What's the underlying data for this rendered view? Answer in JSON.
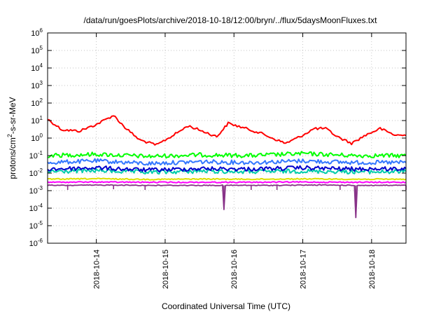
{
  "chart_data": {
    "type": "line",
    "title": "/data/run/goesPlots/archive/2018-10-18/12:00/bryn/../flux/5daysMoonFluxes.txt",
    "xlabel": "Coordinated Universal Time (UTC)",
    "ylabel_parts": [
      "protons/cm",
      "2",
      "-s-sr-MeV"
    ],
    "y_scale": "log",
    "ylim": [
      1e-06,
      1000000.0
    ],
    "xlim": [
      "2018-10-13T07:00",
      "2018-10-18T12:00"
    ],
    "grid": true,
    "x_ticks": [
      "2018-10-14",
      "2018-10-15",
      "2018-10-16",
      "2018-10-17",
      "2018-10-18"
    ],
    "y_ticks": [
      {
        "base": "10",
        "exp": "-6"
      },
      {
        "base": "10",
        "exp": "-5"
      },
      {
        "base": "10",
        "exp": "-4"
      },
      {
        "base": "10",
        "exp": "-3"
      },
      {
        "base": "10",
        "exp": "-2"
      },
      {
        "base": "10",
        "exp": "-1"
      },
      {
        "base": "10",
        "exp": "0"
      },
      {
        "base": "10",
        "exp": "1"
      },
      {
        "base": "10",
        "exp": "2"
      },
      {
        "base": "10",
        "exp": "3"
      },
      {
        "base": "10",
        "exp": "4"
      },
      {
        "base": "10",
        "exp": "5"
      },
      {
        "base": "10",
        "exp": "6"
      }
    ],
    "series": [
      {
        "color": "#ff0000",
        "x": [
          "2018-10-13T07:00",
          "2018-10-13T12:00",
          "2018-10-13T18:00",
          "2018-10-14T00:00",
          "2018-10-14T06:00",
          "2018-10-14T10:00",
          "2018-10-14T15:00",
          "2018-10-14T21:00",
          "2018-10-15T03:00",
          "2018-10-15T08:00",
          "2018-10-15T13:00",
          "2018-10-15T18:00",
          "2018-10-15T22:00",
          "2018-10-16T03:00",
          "2018-10-16T09:00",
          "2018-10-16T14:00",
          "2018-10-16T18:00",
          "2018-10-16T23:00",
          "2018-10-17T04:00",
          "2018-10-17T08:00",
          "2018-10-17T12:00",
          "2018-10-17T17:00",
          "2018-10-17T22:00",
          "2018-10-18T03:00",
          "2018-10-18T08:00",
          "2018-10-18T12:00"
        ],
        "values": [
          12,
          3,
          2.5,
          6,
          20,
          4,
          0.8,
          0.4,
          1.5,
          5,
          2.5,
          1.2,
          7,
          4,
          2,
          0.9,
          0.5,
          1.2,
          3.5,
          3.5,
          1.2,
          0.5,
          1.5,
          3.5,
          1.5,
          1.4
        ]
      },
      {
        "color": "#00ff00",
        "x": [
          "2018-10-13T07:00",
          "2018-10-14T00:00",
          "2018-10-14T18:00",
          "2018-10-15T12:00",
          "2018-10-16T06:00",
          "2018-10-17T00:00",
          "2018-10-17T18:00",
          "2018-10-18T12:00"
        ],
        "values": [
          0.1,
          0.12,
          0.09,
          0.11,
          0.1,
          0.13,
          0.1,
          0.1
        ]
      },
      {
        "color": "#3377ff",
        "x": [
          "2018-10-13T07:00",
          "2018-10-14T00:00",
          "2018-10-14T18:00",
          "2018-10-15T12:00",
          "2018-10-16T06:00",
          "2018-10-17T00:00",
          "2018-10-17T18:00",
          "2018-10-18T12:00"
        ],
        "values": [
          0.04,
          0.05,
          0.035,
          0.045,
          0.04,
          0.05,
          0.04,
          0.04
        ]
      },
      {
        "color": "#00ccaa",
        "x": [
          "2018-10-13T07:00",
          "2018-10-14T00:00",
          "2018-10-14T18:00",
          "2018-10-15T12:00",
          "2018-10-16T06:00",
          "2018-10-17T00:00",
          "2018-10-17T18:00",
          "2018-10-18T12:00"
        ],
        "values": [
          0.012,
          0.014,
          0.011,
          0.013,
          0.012,
          0.013,
          0.012,
          0.012
        ]
      },
      {
        "color": "#0000cc",
        "x": [
          "2018-10-13T07:00",
          "2018-10-14T00:00",
          "2018-10-14T18:00",
          "2018-10-15T12:00",
          "2018-10-16T06:00",
          "2018-10-17T00:00",
          "2018-10-17T18:00",
          "2018-10-18T12:00"
        ],
        "values": [
          0.017,
          0.02,
          0.015,
          0.018,
          0.017,
          0.02,
          0.017,
          0.018
        ]
      },
      {
        "color": "#dddd00",
        "x": [
          "2018-10-13T07:00",
          "2018-10-14T00:00",
          "2018-10-14T18:00",
          "2018-10-15T12:00",
          "2018-10-16T06:00",
          "2018-10-17T00:00",
          "2018-10-17T18:00",
          "2018-10-18T12:00"
        ],
        "values": [
          0.0045,
          0.0048,
          0.0044,
          0.0046,
          0.0045,
          0.0047,
          0.0045,
          0.0045
        ]
      },
      {
        "color": "#ff00ff",
        "x": [
          "2018-10-13T07:00",
          "2018-10-14T00:00",
          "2018-10-14T18:00",
          "2018-10-15T12:00",
          "2018-10-16T06:00",
          "2018-10-17T00:00",
          "2018-10-17T18:00",
          "2018-10-18T12:00"
        ],
        "values": [
          0.003,
          0.0031,
          0.003,
          0.003,
          0.003,
          0.0031,
          0.003,
          0.003
        ]
      },
      {
        "color": "#883388",
        "x": [
          "2018-10-13T07:00",
          "2018-10-13T14:00",
          "2018-10-14T06:00",
          "2018-10-14T17:00",
          "2018-10-15T12:00",
          "2018-10-15T20:00",
          "2018-10-15T20:30",
          "2018-10-15T21:00",
          "2018-10-16T06:00",
          "2018-10-16T12:00",
          "2018-10-17T06:00",
          "2018-10-17T18:00",
          "2018-10-17T18:30",
          "2018-10-17T19:00",
          "2018-10-18T12:00"
        ],
        "values": [
          0.002,
          0.002,
          0.0021,
          0.002,
          0.002,
          0.002,
          8e-05,
          0.002,
          0.002,
          0.002,
          0.0021,
          0.002,
          3e-05,
          0.002,
          0.002
        ]
      }
    ],
    "dips": [
      {
        "x": "2018-10-13T14:00",
        "low": 0.0011
      },
      {
        "x": "2018-10-14T06:00",
        "low": 0.0012
      },
      {
        "x": "2018-10-14T17:00",
        "low": 0.0011
      },
      {
        "x": "2018-10-15T20:30",
        "low": 8e-05
      },
      {
        "x": "2018-10-16T06:00",
        "low": 0.0011
      },
      {
        "x": "2018-10-16T15:00",
        "low": 0.0011
      },
      {
        "x": "2018-10-17T13:00",
        "low": 0.0011
      },
      {
        "x": "2018-10-17T18:30",
        "low": 3e-05
      },
      {
        "x": "2018-10-18T12:00",
        "low": 0.0011
      }
    ]
  }
}
